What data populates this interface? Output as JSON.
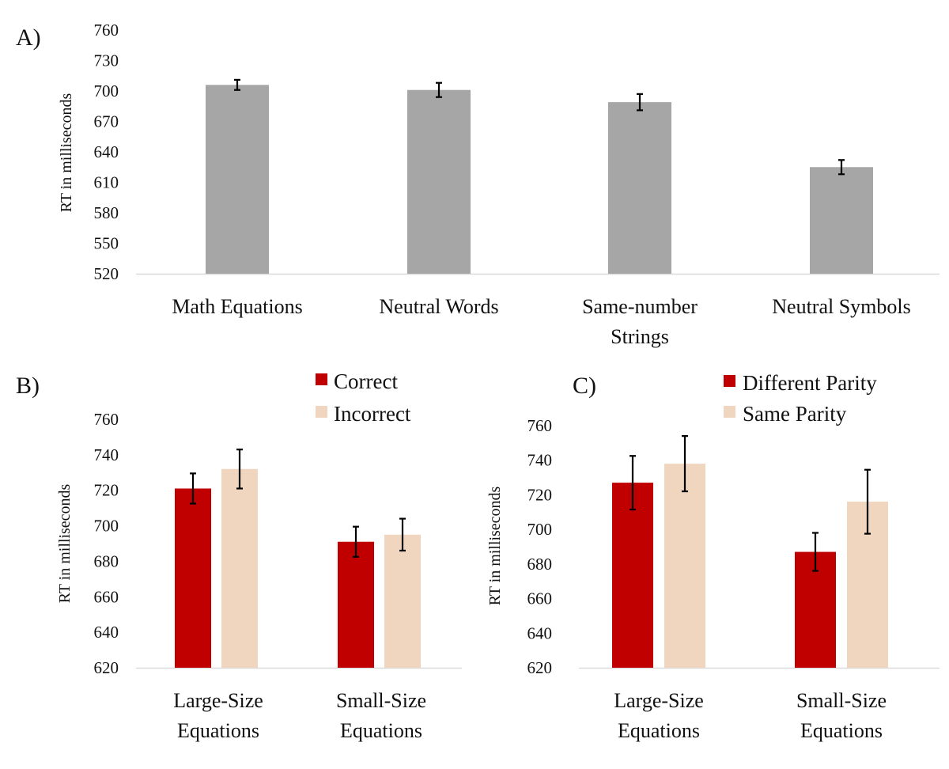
{
  "chart_data": [
    {
      "panel": "A)",
      "type": "bar",
      "ylabel": "RT in milliseconds",
      "ylim": [
        520,
        760
      ],
      "yticks": [
        520,
        550,
        580,
        610,
        640,
        670,
        700,
        730,
        760
      ],
      "categories": [
        [
          "Math Equations"
        ],
        [
          "Neutral Words"
        ],
        [
          "Same-number",
          "Strings"
        ],
        [
          "Neutral Symbols"
        ]
      ],
      "series": [
        {
          "name": "",
          "color": "#a6a6a6",
          "values": [
            706,
            701,
            689,
            625
          ],
          "errors": [
            5,
            7,
            8,
            7
          ]
        }
      ],
      "grid": false,
      "legend": null
    },
    {
      "panel": "B)",
      "type": "bar",
      "ylabel": "RT in milliseconds",
      "ylim": [
        620,
        760
      ],
      "yticks": [
        620,
        640,
        660,
        680,
        700,
        720,
        740,
        760
      ],
      "categories": [
        [
          "Large-Size",
          "Equations"
        ],
        [
          "Small-Size",
          "Equations"
        ]
      ],
      "series": [
        {
          "name": "Correct",
          "color": "#c00000",
          "values": [
            721,
            691
          ],
          "errors": [
            8.5,
            8.5
          ]
        },
        {
          "name": "Incorrect",
          "color": "#f0d5bf",
          "values": [
            732,
            695
          ],
          "errors": [
            11,
            9
          ]
        }
      ],
      "grid": false,
      "legend": "top-right"
    },
    {
      "panel": "C)",
      "type": "bar",
      "ylabel": "RT in milliseconds",
      "ylim": [
        620,
        760
      ],
      "yticks": [
        620,
        640,
        660,
        680,
        700,
        720,
        740,
        760
      ],
      "categories": [
        [
          "Large-Size",
          "Equations"
        ],
        [
          "Small-Size",
          "Equations"
        ]
      ],
      "series": [
        {
          "name": "Different Parity",
          "color": "#c00000",
          "values": [
            727,
            687
          ],
          "errors": [
            15.5,
            11
          ]
        },
        {
          "name": "Same Parity",
          "color": "#f0d5bf",
          "values": [
            738,
            716
          ],
          "errors": [
            16,
            18.5
          ]
        }
      ],
      "grid": false,
      "legend": "top-right"
    }
  ]
}
